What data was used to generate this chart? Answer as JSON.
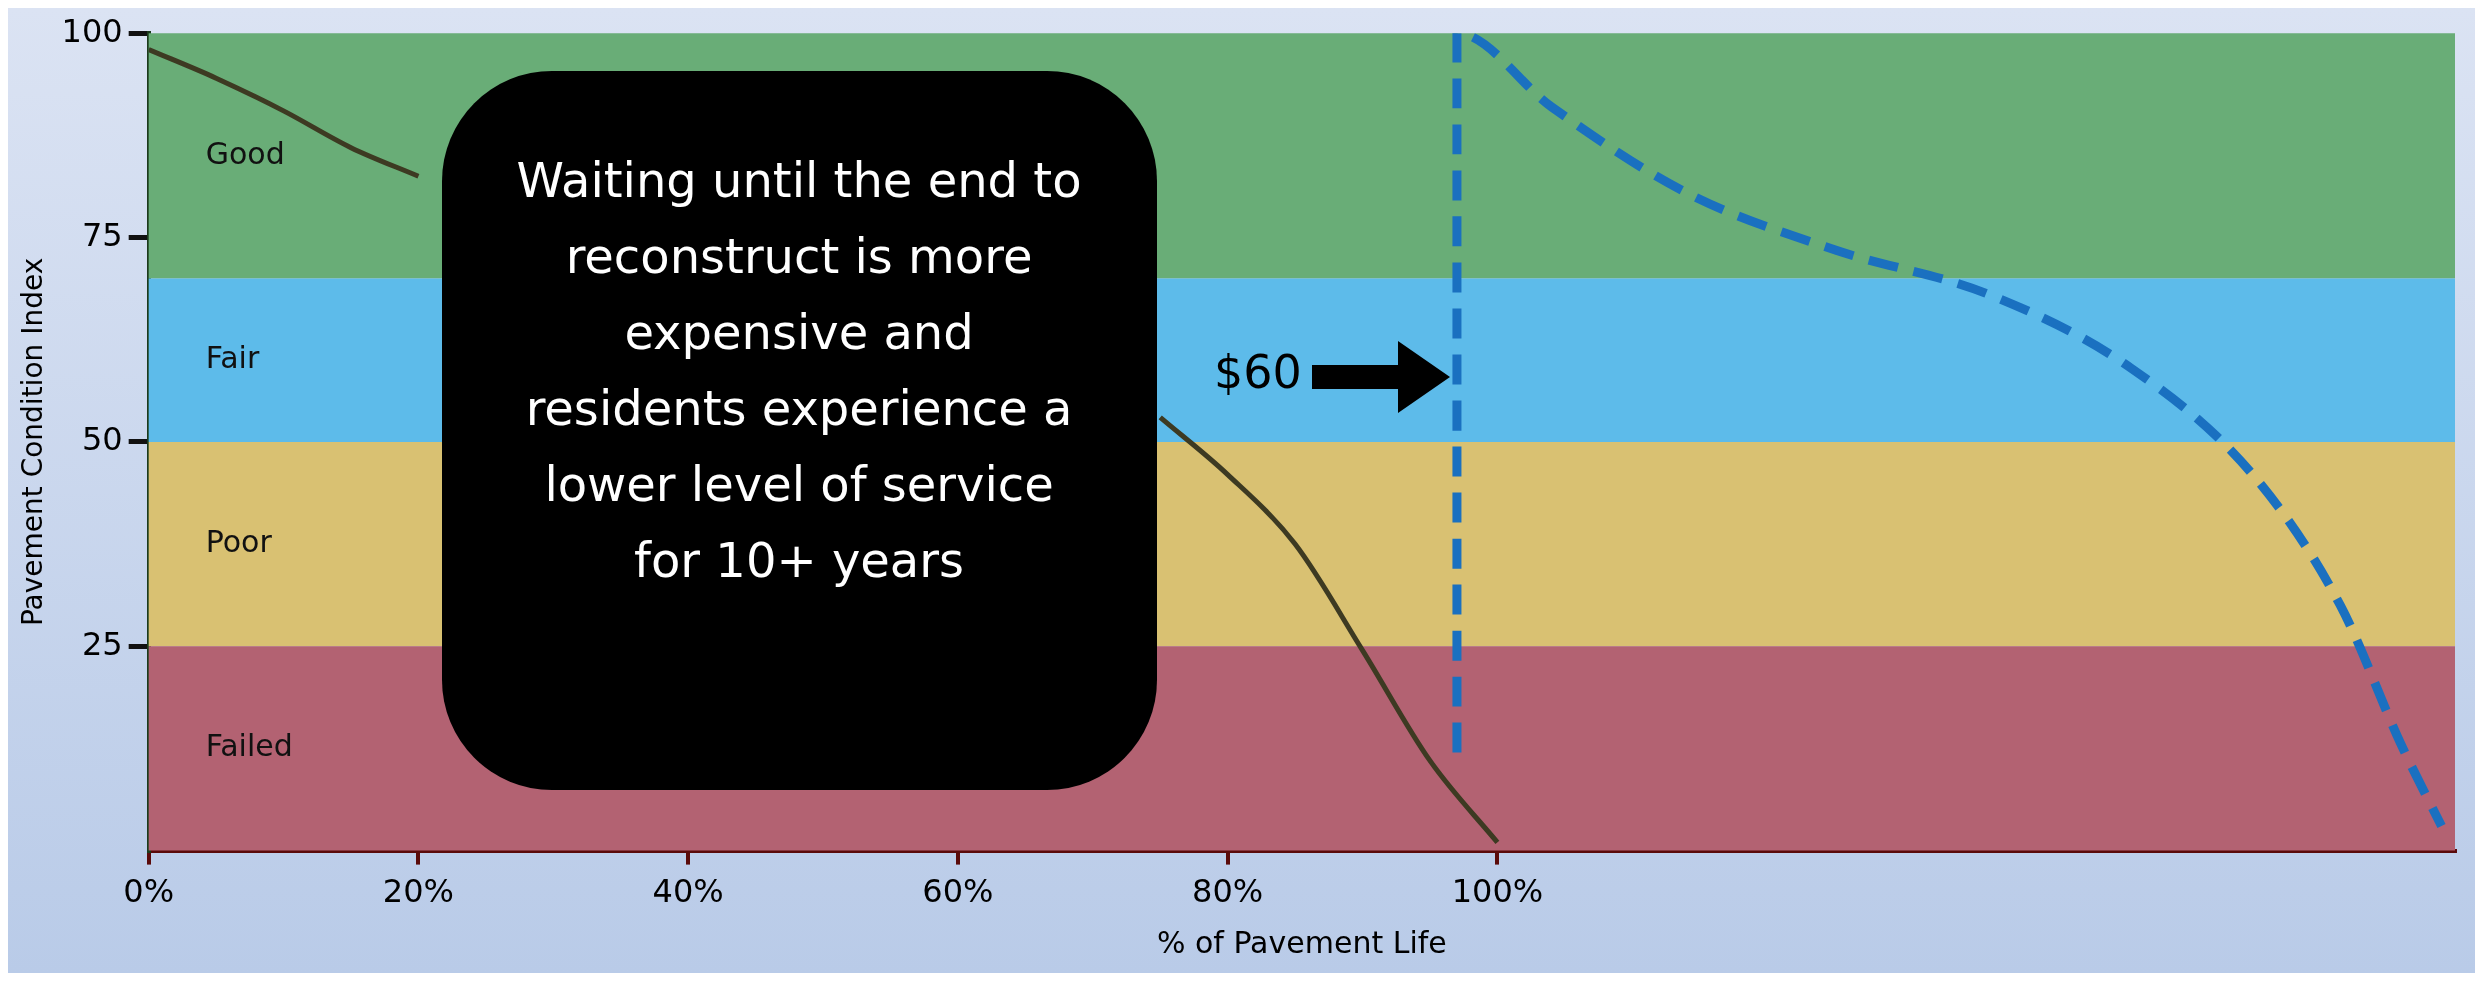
{
  "chart_data": {
    "type": "line",
    "xlabel": "% of Pavement Life",
    "ylabel": "Pavement Condition Index",
    "xlim": [
      0,
      171
    ],
    "xticks": [
      {
        "value": 0,
        "label": "0%"
      },
      {
        "value": 20,
        "label": "20%"
      },
      {
        "value": 40,
        "label": "40%"
      },
      {
        "value": 60,
        "label": "60%"
      },
      {
        "value": 80,
        "label": "80%"
      },
      {
        "value": 100,
        "label": "100%"
      }
    ],
    "ylim": [
      0,
      100
    ],
    "yticks": [
      25,
      50,
      75,
      100
    ],
    "grid": false,
    "legend": false,
    "marker": "none",
    "series": [
      {
        "color": "#3d3a22",
        "line_style": "solid",
        "x": [
          0,
          5,
          10,
          15,
          20,
          30,
          40,
          50,
          60,
          70,
          75,
          80,
          85,
          90,
          95,
          100
        ],
        "values": [
          98,
          94.5,
          90.5,
          86,
          82.5,
          null,
          null,
          null,
          null,
          null,
          53,
          46,
          37.5,
          24.5,
          11,
          1
        ]
      },
      {
        "color": "#1a70c0",
        "line_style": "dashed",
        "x": [
          97,
          97,
          104,
          114,
          125,
          136.5,
          147,
          156,
          162.5,
          167,
          170
        ],
        "values": [
          12,
          100,
          91,
          80.5,
          73.5,
          68,
          59,
          46,
          30,
          13,
          3
        ]
      }
    ],
    "bands": [
      {
        "axis": "y",
        "from": 70,
        "to": 100,
        "label": "Good",
        "color": "#69ad77"
      },
      {
        "axis": "y",
        "from": 50,
        "to": 70,
        "label": "Fair",
        "color": "#5dbbea"
      },
      {
        "axis": "y",
        "from": 25,
        "to": 50,
        "label": "Poor",
        "color": "#d9c172"
      },
      {
        "axis": "y",
        "from": 0,
        "to": 25,
        "label": "Failed",
        "color": "#b36272"
      }
    ],
    "annotations": [
      "Waiting until the end to reconstruct is more expensive and residents experience a lower level of service for 10+ years",
      "$60"
    ]
  }
}
